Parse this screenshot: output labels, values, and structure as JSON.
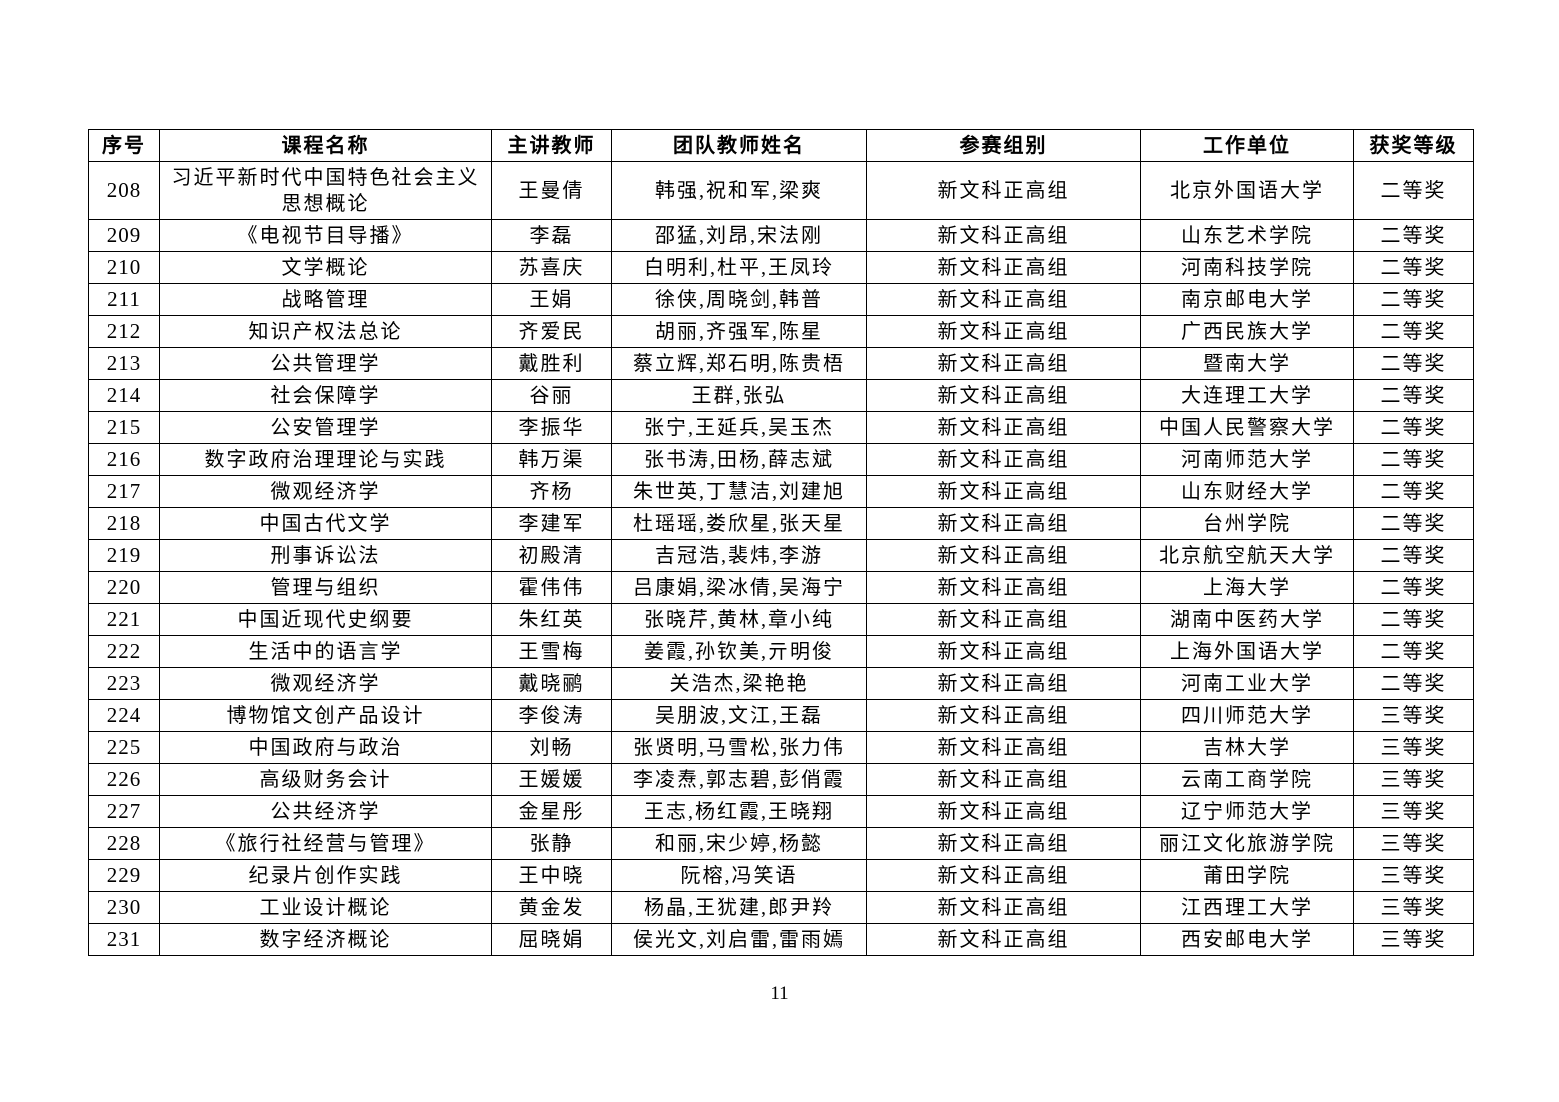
{
  "page_number": "11",
  "table": {
    "headers": [
      "序号",
      "课程名称",
      "主讲教师",
      "团队教师姓名",
      "参赛组别",
      "工作单位",
      "获奖等级"
    ],
    "rows": [
      {
        "no": "208",
        "course": "习近平新时代中国特色社会主义思想概论",
        "teacher": "王曼倩",
        "team": "韩强,祝和军,梁爽",
        "group": "新文科正高组",
        "org": "北京外国语大学",
        "award": "二等奖"
      },
      {
        "no": "209",
        "course": "《电视节目导播》",
        "teacher": "李磊",
        "team": "邵猛,刘昂,宋法刚",
        "group": "新文科正高组",
        "org": "山东艺术学院",
        "award": "二等奖"
      },
      {
        "no": "210",
        "course": "文学概论",
        "teacher": "苏喜庆",
        "team": "白明利,杜平,王凤玲",
        "group": "新文科正高组",
        "org": "河南科技学院",
        "award": "二等奖"
      },
      {
        "no": "211",
        "course": "战略管理",
        "teacher": "王娟",
        "team": "徐侠,周晓剑,韩普",
        "group": "新文科正高组",
        "org": "南京邮电大学",
        "award": "二等奖"
      },
      {
        "no": "212",
        "course": "知识产权法总论",
        "teacher": "齐爱民",
        "team": "胡丽,齐强军,陈星",
        "group": "新文科正高组",
        "org": "广西民族大学",
        "award": "二等奖"
      },
      {
        "no": "213",
        "course": "公共管理学",
        "teacher": "戴胜利",
        "team": "蔡立辉,郑石明,陈贵梧",
        "group": "新文科正高组",
        "org": "暨南大学",
        "award": "二等奖"
      },
      {
        "no": "214",
        "course": "社会保障学",
        "teacher": "谷丽",
        "team": "王群,张弘",
        "group": "新文科正高组",
        "org": "大连理工大学",
        "award": "二等奖"
      },
      {
        "no": "215",
        "course": "公安管理学",
        "teacher": "李振华",
        "team": "张宁,王延兵,吴玉杰",
        "group": "新文科正高组",
        "org": "中国人民警察大学",
        "award": "二等奖"
      },
      {
        "no": "216",
        "course": "数字政府治理理论与实践",
        "teacher": "韩万渠",
        "team": "张书涛,田杨,薛志斌",
        "group": "新文科正高组",
        "org": "河南师范大学",
        "award": "二等奖"
      },
      {
        "no": "217",
        "course": "微观经济学",
        "teacher": "齐杨",
        "team": "朱世英,丁慧洁,刘建旭",
        "group": "新文科正高组",
        "org": "山东财经大学",
        "award": "二等奖"
      },
      {
        "no": "218",
        "course": "中国古代文学",
        "teacher": "李建军",
        "team": "杜瑶瑶,娄欣星,张天星",
        "group": "新文科正高组",
        "org": "台州学院",
        "award": "二等奖"
      },
      {
        "no": "219",
        "course": "刑事诉讼法",
        "teacher": "初殿清",
        "team": "吉冠浩,裴炜,李游",
        "group": "新文科正高组",
        "org": "北京航空航天大学",
        "award": "二等奖"
      },
      {
        "no": "220",
        "course": "管理与组织",
        "teacher": "霍伟伟",
        "team": "吕康娟,梁冰倩,吴海宁",
        "group": "新文科正高组",
        "org": "上海大学",
        "award": "二等奖"
      },
      {
        "no": "221",
        "course": "中国近现代史纲要",
        "teacher": "朱红英",
        "team": "张晓芹,黄林,章小纯",
        "group": "新文科正高组",
        "org": "湖南中医药大学",
        "award": "二等奖"
      },
      {
        "no": "222",
        "course": "生活中的语言学",
        "teacher": "王雪梅",
        "team": "姜霞,孙钦美,亓明俊",
        "group": "新文科正高组",
        "org": "上海外国语大学",
        "award": "二等奖"
      },
      {
        "no": "223",
        "course": "微观经济学",
        "teacher": "戴晓鹂",
        "team": "关浩杰,梁艳艳",
        "group": "新文科正高组",
        "org": "河南工业大学",
        "award": "二等奖"
      },
      {
        "no": "224",
        "course": "博物馆文创产品设计",
        "teacher": "李俊涛",
        "team": "吴朋波,文江,王磊",
        "group": "新文科正高组",
        "org": "四川师范大学",
        "award": "三等奖"
      },
      {
        "no": "225",
        "course": "中国政府与政治",
        "teacher": "刘畅",
        "team": "张贤明,马雪松,张力伟",
        "group": "新文科正高组",
        "org": "吉林大学",
        "award": "三等奖"
      },
      {
        "no": "226",
        "course": "高级财务会计",
        "teacher": "王媛媛",
        "team": "李凌焘,郭志碧,彭俏霞",
        "group": "新文科正高组",
        "org": "云南工商学院",
        "award": "三等奖"
      },
      {
        "no": "227",
        "course": "公共经济学",
        "teacher": "金星彤",
        "team": "王志,杨红霞,王晓翔",
        "group": "新文科正高组",
        "org": "辽宁师范大学",
        "award": "三等奖"
      },
      {
        "no": "228",
        "course": "《旅行社经营与管理》",
        "teacher": "张静",
        "team": "和丽,宋少婷,杨懿",
        "group": "新文科正高组",
        "org": "丽江文化旅游学院",
        "award": "三等奖"
      },
      {
        "no": "229",
        "course": "纪录片创作实践",
        "teacher": "王中晓",
        "team": "阮榕,冯笑语",
        "group": "新文科正高组",
        "org": "莆田学院",
        "award": "三等奖"
      },
      {
        "no": "230",
        "course": "工业设计概论",
        "teacher": "黄金发",
        "team": "杨晶,王犹建,郎尹羚",
        "group": "新文科正高组",
        "org": "江西理工大学",
        "award": "三等奖"
      },
      {
        "no": "231",
        "course": "数字经济概论",
        "teacher": "屈晓娟",
        "team": "侯光文,刘启雷,雷雨嫣",
        "group": "新文科正高组",
        "org": "西安邮电大学",
        "award": "三等奖"
      }
    ]
  }
}
